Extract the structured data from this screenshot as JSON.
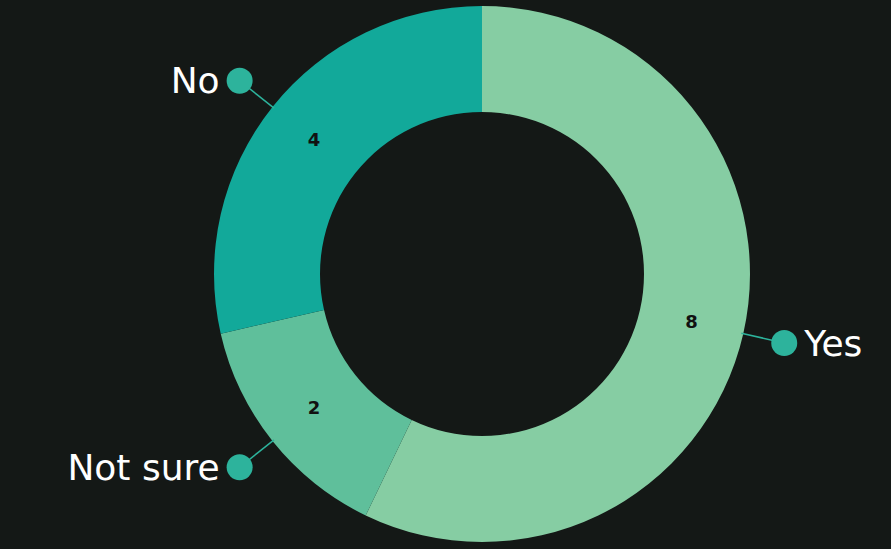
{
  "chart_data": {
    "type": "donut",
    "categories": [
      "Yes",
      "Not sure",
      "No"
    ],
    "values": [
      8,
      2,
      4
    ],
    "colors": [
      "#86cda3",
      "#5fbf9b",
      "#12a99a"
    ],
    "data_labels": true
  }
}
